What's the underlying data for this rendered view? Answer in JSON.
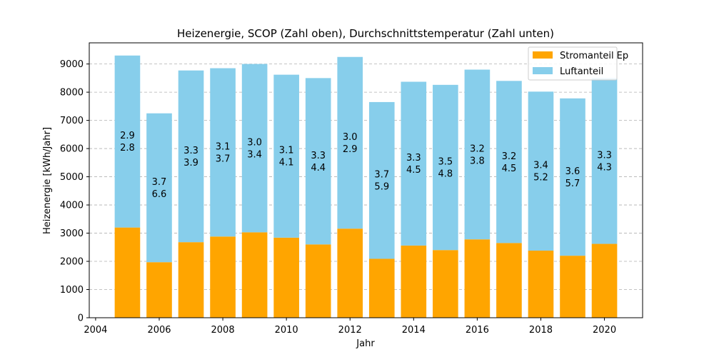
{
  "chart_data": {
    "type": "bar",
    "stacked": true,
    "title": "Heizenergie, SCOP (Zahl oben), Durchschnittstemperatur (Zahl unten)",
    "xlabel": "Jahr",
    "ylabel": "Heizenergie [kWh/Jahr]",
    "xlim": [
      2003.8,
      2021.2
    ],
    "ylim": [
      0,
      9750
    ],
    "x_ticks": [
      2004,
      2006,
      2008,
      2010,
      2012,
      2014,
      2016,
      2018,
      2020
    ],
    "y_ticks": [
      0,
      1000,
      2000,
      3000,
      4000,
      5000,
      6000,
      7000,
      8000,
      9000
    ],
    "grid": "y-dashed",
    "legend_position": "top-right",
    "x": [
      2005,
      2006,
      2007,
      2008,
      2009,
      2010,
      2011,
      2012,
      2013,
      2014,
      2015,
      2016,
      2017,
      2018,
      2019,
      2020
    ],
    "series": [
      {
        "name": "Stromanteil Ep",
        "color": "#ffa500",
        "values": [
          3200,
          1970,
          2680,
          2880,
          3030,
          2840,
          2600,
          3160,
          2090,
          2560,
          2400,
          2780,
          2650,
          2380,
          2200,
          2620
        ]
      },
      {
        "name": "Luftanteil",
        "color": "#87ceeb",
        "values": [
          6100,
          5280,
          6090,
          5970,
          5970,
          5780,
          5900,
          6090,
          5560,
          5810,
          5860,
          6020,
          5750,
          5640,
          5580,
          5880
        ]
      }
    ],
    "totals": [
      9300,
      7250,
      8770,
      8850,
      9000,
      8620,
      8500,
      9250,
      7650,
      8370,
      8260,
      8800,
      8400,
      8020,
      7780,
      8500
    ],
    "scop": [
      "2.9",
      "3.7",
      "3.3",
      "3.1",
      "3.0",
      "3.1",
      "3.3",
      "3.0",
      "3.7",
      "3.3",
      "3.5",
      "3.2",
      "3.2",
      "3.4",
      "3.6",
      "3.3"
    ],
    "avg_temp": [
      "2.8",
      "6.6",
      "3.9",
      "3.7",
      "3.4",
      "4.1",
      "4.4",
      "2.9",
      "5.9",
      "4.5",
      "4.8",
      "3.8",
      "4.5",
      "5.2",
      "5.7",
      "4.3"
    ]
  }
}
